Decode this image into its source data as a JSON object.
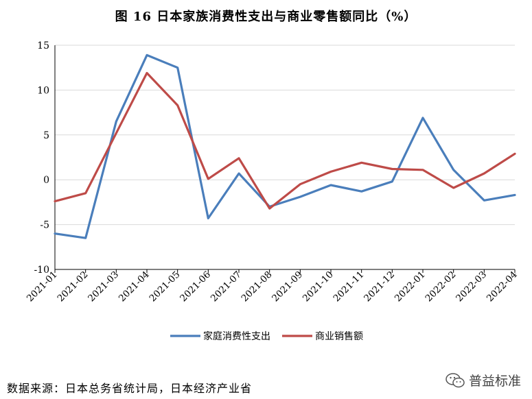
{
  "title": "图 16  日本家族消费性支出与商业零售额同比（%）",
  "source": "数据来源：日本总务省统计局，日本经济产业省",
  "watermark": {
    "text": "普益标准",
    "icon": "wechat-icon"
  },
  "chart_data": {
    "type": "line",
    "title": "图 16  日本家族消费性支出与商业零售额同比（%）",
    "xlabel": "",
    "ylabel": "",
    "ylim": [
      -10,
      15
    ],
    "yticks": [
      15,
      10,
      5,
      0,
      -5,
      -10
    ],
    "grid": "horizontal",
    "legend_position": "bottom",
    "categories": [
      "2021-01",
      "2021-02",
      "2021-03",
      "2021-04",
      "2021-05",
      "2021-06",
      "2021-07",
      "2021-08",
      "2021-09",
      "2021-10",
      "2021-11",
      "2021-12",
      "2022-01",
      "2022-02",
      "2022-03",
      "2022-04"
    ],
    "series": [
      {
        "name": "家庭消费性支出",
        "color": "#4A7EBB",
        "values": [
          -6.0,
          -6.5,
          6.5,
          13.9,
          12.5,
          -4.3,
          0.7,
          -3.0,
          -1.9,
          -0.6,
          -1.3,
          -0.2,
          6.9,
          1.1,
          -2.3,
          -1.7
        ]
      },
      {
        "name": "商业销售额",
        "color": "#BE4B48",
        "values": [
          -2.4,
          -1.5,
          5.2,
          11.9,
          8.3,
          0.1,
          2.4,
          -3.2,
          -0.5,
          0.9,
          1.9,
          1.2,
          1.1,
          -0.9,
          0.7,
          2.9
        ]
      }
    ]
  }
}
